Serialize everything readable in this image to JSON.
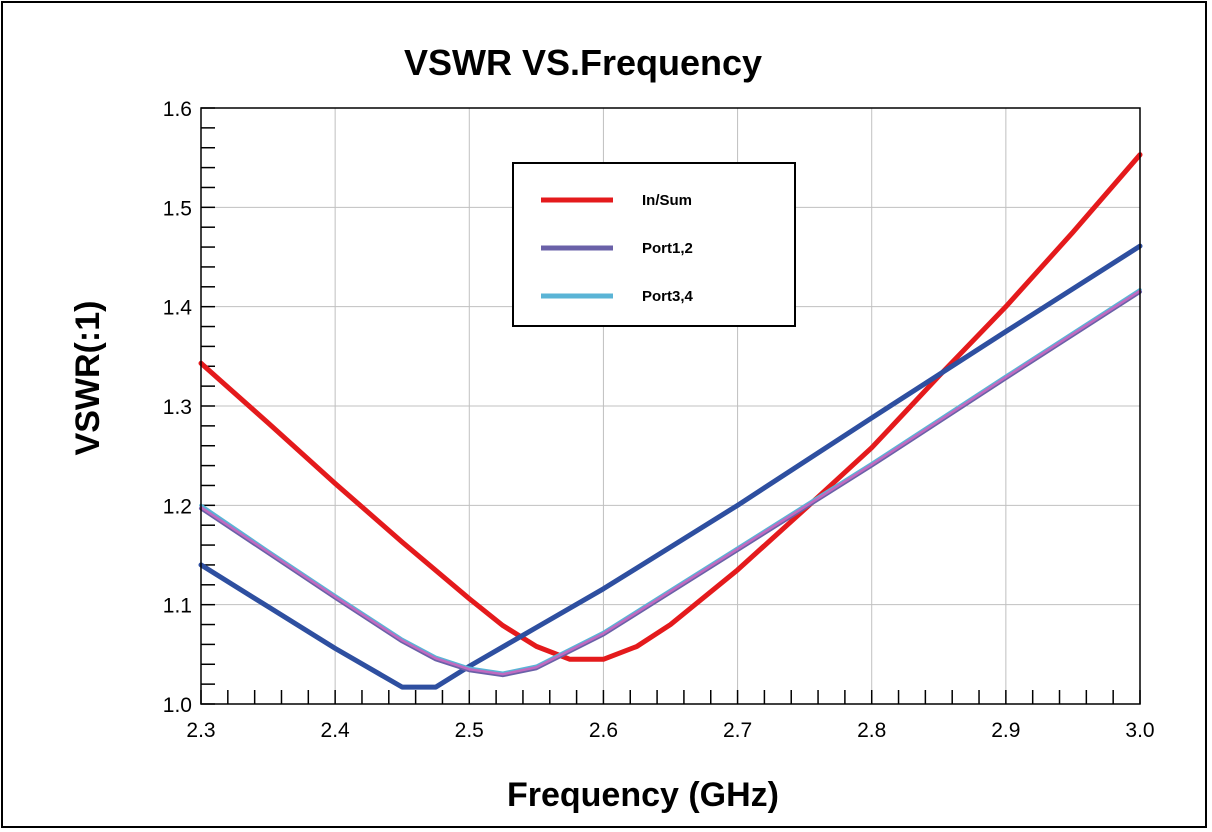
{
  "chart_data": {
    "type": "line",
    "title": "VSWR VS.Frequency",
    "xlabel": "Frequency (GHz)",
    "ylabel": "VSWR(:1)",
    "xlim": [
      2.3,
      3.0
    ],
    "ylim": [
      1.0,
      1.6
    ],
    "xticks": [
      "2.3",
      "2.4",
      "2.5",
      "2.6",
      "2.7",
      "2.8",
      "2.9",
      "3.0"
    ],
    "yticks": [
      "1.0",
      "1.1",
      "1.2",
      "1.3",
      "1.4",
      "1.5",
      "1.6"
    ],
    "grid": true,
    "legend_position": "top-center",
    "legend": [
      {
        "name": "In/Sum",
        "color": "#e41a1c"
      },
      {
        "name": "Port1,2",
        "color": "#6a61a8"
      },
      {
        "name": "Port3,4",
        "color": "#5ab4d6"
      }
    ],
    "series": [
      {
        "color": "#e41a1c",
        "x": [
          2.3,
          2.35,
          2.4,
          2.45,
          2.5,
          2.525,
          2.55,
          2.575,
          2.6,
          2.625,
          2.65,
          2.7,
          2.75,
          2.8,
          2.85,
          2.9,
          2.95,
          3.0
        ],
        "values": [
          1.343,
          1.283,
          1.222,
          1.163,
          1.106,
          1.079,
          1.058,
          1.045,
          1.045,
          1.058,
          1.08,
          1.135,
          1.196,
          1.258,
          1.33,
          1.4,
          1.475,
          1.553
        ]
      },
      {
        "color": "#2e4fa0",
        "x": [
          2.3,
          2.35,
          2.4,
          2.45,
          2.475,
          2.5,
          2.55,
          2.6,
          2.7,
          2.8,
          2.9,
          3.0
        ],
        "values": [
          1.14,
          1.098,
          1.056,
          1.017,
          1.017,
          1.038,
          1.077,
          1.116,
          1.2,
          1.288,
          1.375,
          1.461
        ]
      },
      {
        "color": "#6a61a8",
        "x": [
          2.3,
          2.35,
          2.4,
          2.45,
          2.475,
          2.5,
          2.525,
          2.55,
          2.6,
          2.7,
          2.8,
          2.9,
          3.0
        ],
        "values": [
          1.197,
          1.152,
          1.107,
          1.063,
          1.045,
          1.034,
          1.029,
          1.036,
          1.07,
          1.155,
          1.24,
          1.328,
          1.415
        ]
      },
      {
        "color": "#5ab4d6",
        "x": [
          2.3,
          2.35,
          2.4,
          2.45,
          2.475,
          2.5,
          2.525,
          2.55,
          2.6,
          2.7,
          2.8,
          2.9,
          3.0
        ],
        "values": [
          1.2,
          1.154,
          1.109,
          1.065,
          1.047,
          1.036,
          1.031,
          1.038,
          1.072,
          1.157,
          1.242,
          1.33,
          1.417
        ]
      },
      {
        "color": "#c06ac0",
        "x": [
          2.3,
          2.35,
          2.4,
          2.45,
          2.475,
          2.5,
          2.525,
          2.55,
          2.6,
          2.7,
          2.8,
          2.9,
          3.0
        ],
        "values": [
          1.198,
          1.153,
          1.108,
          1.064,
          1.046,
          1.035,
          1.03,
          1.037,
          1.071,
          1.156,
          1.241,
          1.329,
          1.416
        ]
      }
    ]
  }
}
